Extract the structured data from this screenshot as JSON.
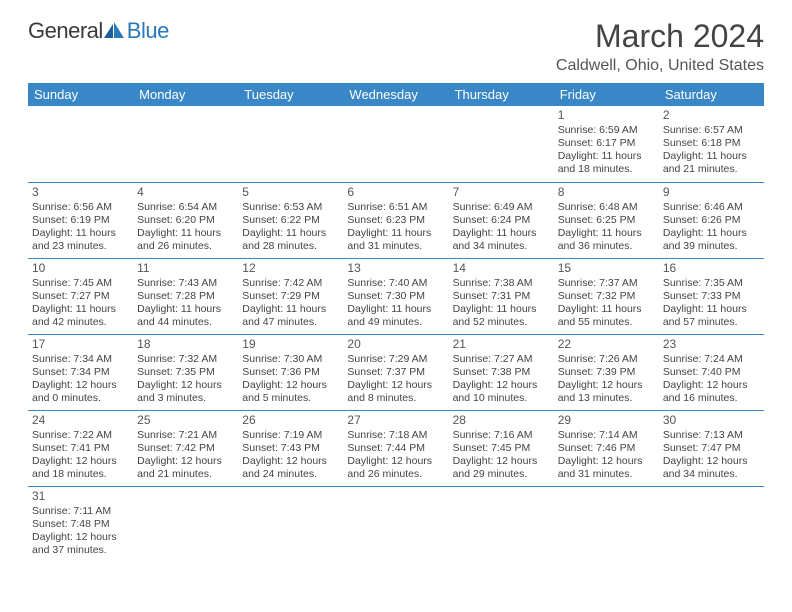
{
  "logo": {
    "part1": "General",
    "part2": "Blue"
  },
  "title": "March 2024",
  "location": "Caldwell, Ohio, United States",
  "colors": {
    "header_bg": "#3a87c7",
    "header_text": "#ffffff",
    "rule": "#3a87c7",
    "body_text": "#444444",
    "logo_blue": "#2a7ab8",
    "background": "#ffffff"
  },
  "typography": {
    "month_title_fontsize": 32,
    "location_fontsize": 16,
    "th_fontsize": 13,
    "cell_fontsize": 10.5,
    "daynum_fontsize": 12
  },
  "weekdays": [
    "Sunday",
    "Monday",
    "Tuesday",
    "Wednesday",
    "Thursday",
    "Friday",
    "Saturday"
  ],
  "weeks": [
    [
      null,
      null,
      null,
      null,
      null,
      {
        "n": "1",
        "sr": "Sunrise: 6:59 AM",
        "ss": "Sunset: 6:17 PM",
        "d1": "Daylight: 11 hours",
        "d2": "and 18 minutes."
      },
      {
        "n": "2",
        "sr": "Sunrise: 6:57 AM",
        "ss": "Sunset: 6:18 PM",
        "d1": "Daylight: 11 hours",
        "d2": "and 21 minutes."
      }
    ],
    [
      {
        "n": "3",
        "sr": "Sunrise: 6:56 AM",
        "ss": "Sunset: 6:19 PM",
        "d1": "Daylight: 11 hours",
        "d2": "and 23 minutes."
      },
      {
        "n": "4",
        "sr": "Sunrise: 6:54 AM",
        "ss": "Sunset: 6:20 PM",
        "d1": "Daylight: 11 hours",
        "d2": "and 26 minutes."
      },
      {
        "n": "5",
        "sr": "Sunrise: 6:53 AM",
        "ss": "Sunset: 6:22 PM",
        "d1": "Daylight: 11 hours",
        "d2": "and 28 minutes."
      },
      {
        "n": "6",
        "sr": "Sunrise: 6:51 AM",
        "ss": "Sunset: 6:23 PM",
        "d1": "Daylight: 11 hours",
        "d2": "and 31 minutes."
      },
      {
        "n": "7",
        "sr": "Sunrise: 6:49 AM",
        "ss": "Sunset: 6:24 PM",
        "d1": "Daylight: 11 hours",
        "d2": "and 34 minutes."
      },
      {
        "n": "8",
        "sr": "Sunrise: 6:48 AM",
        "ss": "Sunset: 6:25 PM",
        "d1": "Daylight: 11 hours",
        "d2": "and 36 minutes."
      },
      {
        "n": "9",
        "sr": "Sunrise: 6:46 AM",
        "ss": "Sunset: 6:26 PM",
        "d1": "Daylight: 11 hours",
        "d2": "and 39 minutes."
      }
    ],
    [
      {
        "n": "10",
        "sr": "Sunrise: 7:45 AM",
        "ss": "Sunset: 7:27 PM",
        "d1": "Daylight: 11 hours",
        "d2": "and 42 minutes."
      },
      {
        "n": "11",
        "sr": "Sunrise: 7:43 AM",
        "ss": "Sunset: 7:28 PM",
        "d1": "Daylight: 11 hours",
        "d2": "and 44 minutes."
      },
      {
        "n": "12",
        "sr": "Sunrise: 7:42 AM",
        "ss": "Sunset: 7:29 PM",
        "d1": "Daylight: 11 hours",
        "d2": "and 47 minutes."
      },
      {
        "n": "13",
        "sr": "Sunrise: 7:40 AM",
        "ss": "Sunset: 7:30 PM",
        "d1": "Daylight: 11 hours",
        "d2": "and 49 minutes."
      },
      {
        "n": "14",
        "sr": "Sunrise: 7:38 AM",
        "ss": "Sunset: 7:31 PM",
        "d1": "Daylight: 11 hours",
        "d2": "and 52 minutes."
      },
      {
        "n": "15",
        "sr": "Sunrise: 7:37 AM",
        "ss": "Sunset: 7:32 PM",
        "d1": "Daylight: 11 hours",
        "d2": "and 55 minutes."
      },
      {
        "n": "16",
        "sr": "Sunrise: 7:35 AM",
        "ss": "Sunset: 7:33 PM",
        "d1": "Daylight: 11 hours",
        "d2": "and 57 minutes."
      }
    ],
    [
      {
        "n": "17",
        "sr": "Sunrise: 7:34 AM",
        "ss": "Sunset: 7:34 PM",
        "d1": "Daylight: 12 hours",
        "d2": "and 0 minutes."
      },
      {
        "n": "18",
        "sr": "Sunrise: 7:32 AM",
        "ss": "Sunset: 7:35 PM",
        "d1": "Daylight: 12 hours",
        "d2": "and 3 minutes."
      },
      {
        "n": "19",
        "sr": "Sunrise: 7:30 AM",
        "ss": "Sunset: 7:36 PM",
        "d1": "Daylight: 12 hours",
        "d2": "and 5 minutes."
      },
      {
        "n": "20",
        "sr": "Sunrise: 7:29 AM",
        "ss": "Sunset: 7:37 PM",
        "d1": "Daylight: 12 hours",
        "d2": "and 8 minutes."
      },
      {
        "n": "21",
        "sr": "Sunrise: 7:27 AM",
        "ss": "Sunset: 7:38 PM",
        "d1": "Daylight: 12 hours",
        "d2": "and 10 minutes."
      },
      {
        "n": "22",
        "sr": "Sunrise: 7:26 AM",
        "ss": "Sunset: 7:39 PM",
        "d1": "Daylight: 12 hours",
        "d2": "and 13 minutes."
      },
      {
        "n": "23",
        "sr": "Sunrise: 7:24 AM",
        "ss": "Sunset: 7:40 PM",
        "d1": "Daylight: 12 hours",
        "d2": "and 16 minutes."
      }
    ],
    [
      {
        "n": "24",
        "sr": "Sunrise: 7:22 AM",
        "ss": "Sunset: 7:41 PM",
        "d1": "Daylight: 12 hours",
        "d2": "and 18 minutes."
      },
      {
        "n": "25",
        "sr": "Sunrise: 7:21 AM",
        "ss": "Sunset: 7:42 PM",
        "d1": "Daylight: 12 hours",
        "d2": "and 21 minutes."
      },
      {
        "n": "26",
        "sr": "Sunrise: 7:19 AM",
        "ss": "Sunset: 7:43 PM",
        "d1": "Daylight: 12 hours",
        "d2": "and 24 minutes."
      },
      {
        "n": "27",
        "sr": "Sunrise: 7:18 AM",
        "ss": "Sunset: 7:44 PM",
        "d1": "Daylight: 12 hours",
        "d2": "and 26 minutes."
      },
      {
        "n": "28",
        "sr": "Sunrise: 7:16 AM",
        "ss": "Sunset: 7:45 PM",
        "d1": "Daylight: 12 hours",
        "d2": "and 29 minutes."
      },
      {
        "n": "29",
        "sr": "Sunrise: 7:14 AM",
        "ss": "Sunset: 7:46 PM",
        "d1": "Daylight: 12 hours",
        "d2": "and 31 minutes."
      },
      {
        "n": "30",
        "sr": "Sunrise: 7:13 AM",
        "ss": "Sunset: 7:47 PM",
        "d1": "Daylight: 12 hours",
        "d2": "and 34 minutes."
      }
    ],
    [
      {
        "n": "31",
        "sr": "Sunrise: 7:11 AM",
        "ss": "Sunset: 7:48 PM",
        "d1": "Daylight: 12 hours",
        "d2": "and 37 minutes."
      },
      null,
      null,
      null,
      null,
      null,
      null
    ]
  ]
}
